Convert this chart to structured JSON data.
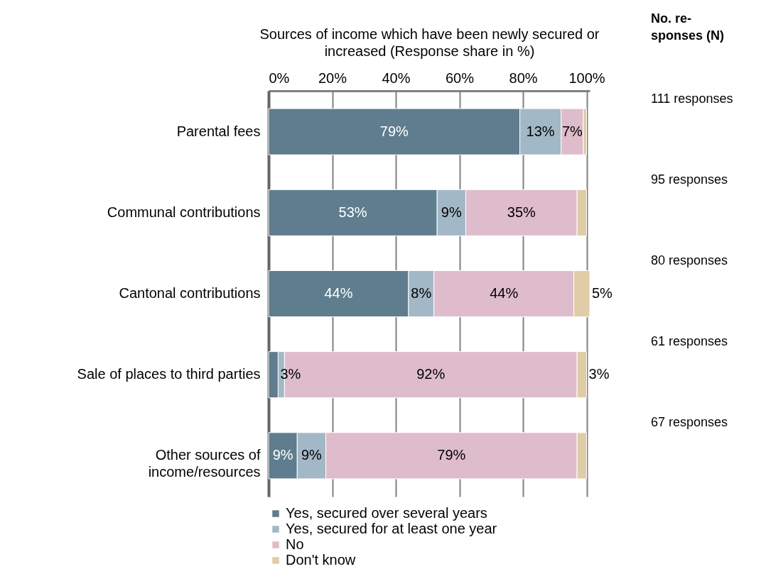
{
  "chart_data": {
    "type": "bar",
    "orientation": "horizontal",
    "stacked": true,
    "xlabel": "Sources of income which have been newly secured or increased (Response share in %)",
    "categories": [
      "Parental fees",
      "Communal contributions",
      "Cantonal contributions",
      "Sale of places to third parties",
      "Other sources of income/resources"
    ],
    "series": [
      {
        "name": "Yes, secured over several years",
        "color": "#5f7d8e",
        "values": [
          79,
          53,
          44,
          3,
          9
        ],
        "value_labels": [
          "79%",
          "53%",
          "44%",
          "3%",
          "9%"
        ]
      },
      {
        "name": "Yes, secured for at least one year",
        "color": "#a3b8c6",
        "values": [
          13,
          9,
          8,
          2,
          9
        ],
        "value_labels": [
          "13%",
          "9%",
          "8%",
          null,
          "9%"
        ]
      },
      {
        "name": "No",
        "color": "#dfbccb",
        "values": [
          7,
          35,
          44,
          92,
          79
        ],
        "value_labels": [
          "7%",
          "35%",
          "44%",
          "92%",
          "79%"
        ]
      },
      {
        "name": "Don't know",
        "color": "#e0cca6",
        "values": [
          1,
          3,
          5,
          3,
          3
        ],
        "value_labels": [
          null,
          null,
          "5%",
          "3%",
          null
        ]
      }
    ],
    "xlim": [
      0,
      101
    ],
    "xticks": [
      {
        "value": 0,
        "label": "0%"
      },
      {
        "value": 20,
        "label": "20%"
      },
      {
        "value": 40,
        "label": "40%"
      },
      {
        "value": 60,
        "label": "60%"
      },
      {
        "value": 80,
        "label": "80%"
      },
      {
        "value": 100,
        "label": "100%"
      }
    ],
    "grid": "x",
    "legend": "bottom",
    "annotations": [
      "No. re-\nsponses (N)",
      "111 responses",
      "95 responses",
      "80 responses",
      "61 responses",
      "67 responses"
    ]
  }
}
